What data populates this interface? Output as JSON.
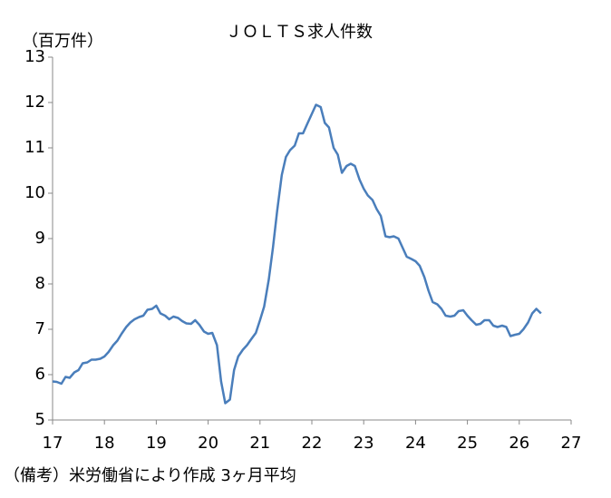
{
  "chart_data": {
    "type": "line",
    "title": "ＪＯＬＴＳ求人件数",
    "y_label": "（百万件）",
    "note": "（備考）米労働省により作成 3ヶ月平均",
    "x": [
      17,
      17.08,
      17.17,
      17.25,
      17.33,
      17.42,
      17.5,
      17.58,
      17.67,
      17.75,
      17.83,
      17.92,
      18,
      18.08,
      18.17,
      18.25,
      18.33,
      18.42,
      18.5,
      18.58,
      18.67,
      18.75,
      18.83,
      18.92,
      19,
      19.08,
      19.17,
      19.25,
      19.33,
      19.42,
      19.5,
      19.58,
      19.67,
      19.75,
      19.83,
      19.92,
      20,
      20.08,
      20.17,
      20.25,
      20.33,
      20.42,
      20.5,
      20.58,
      20.67,
      20.75,
      20.83,
      20.92,
      21,
      21.08,
      21.17,
      21.25,
      21.33,
      21.42,
      21.5,
      21.58,
      21.67,
      21.75,
      21.83,
      21.92,
      22,
      22.08,
      22.17,
      22.25,
      22.33,
      22.42,
      22.5,
      22.58,
      22.67,
      22.75,
      22.83,
      22.92,
      23,
      23.08,
      23.17,
      23.25,
      23.33,
      23.42,
      23.5,
      23.58,
      23.67,
      23.75,
      23.83,
      23.92,
      24,
      24.08,
      24.17,
      24.25,
      24.33,
      24.42,
      24.5,
      24.58,
      24.67,
      24.75,
      24.83,
      24.92,
      25,
      25.08,
      25.17,
      25.25,
      25.33,
      25.42,
      25.5,
      25.58,
      25.67,
      25.75,
      25.83,
      25.92,
      26,
      26.08,
      26.17,
      26.25,
      26.33,
      26.42
    ],
    "series": [
      {
        "name": "JOLTS",
        "color": "#4a7ebb",
        "values": [
          5.85,
          5.84,
          5.8,
          5.95,
          5.93,
          6.05,
          6.1,
          6.25,
          6.27,
          6.33,
          6.33,
          6.35,
          6.4,
          6.5,
          6.65,
          6.75,
          6.9,
          7.05,
          7.15,
          7.22,
          7.27,
          7.3,
          7.43,
          7.45,
          7.52,
          7.35,
          7.3,
          7.22,
          7.28,
          7.25,
          7.18,
          7.13,
          7.12,
          7.2,
          7.1,
          6.95,
          6.9,
          6.92,
          6.65,
          5.85,
          5.37,
          5.45,
          6.1,
          6.4,
          6.55,
          6.65,
          6.78,
          6.92,
          7.2,
          7.5,
          8.1,
          8.8,
          9.6,
          10.4,
          10.8,
          10.95,
          11.05,
          11.32,
          11.32,
          11.55,
          11.75,
          11.95,
          11.9,
          11.55,
          11.45,
          11.0,
          10.85,
          10.45,
          10.6,
          10.65,
          10.6,
          10.3,
          10.1,
          9.95,
          9.85,
          9.65,
          9.5,
          9.05,
          9.03,
          9.05,
          9.0,
          8.8,
          8.6,
          8.55,
          8.5,
          8.4,
          8.15,
          7.85,
          7.6,
          7.55,
          7.45,
          7.3,
          7.28,
          7.3,
          7.4,
          7.42,
          7.3,
          7.2,
          7.1,
          7.12,
          7.2,
          7.2,
          7.08,
          7.05,
          7.08,
          7.05,
          6.85,
          6.88,
          6.9,
          7.0,
          7.15,
          7.35,
          7.45,
          7.35
        ]
      }
    ],
    "xlim": [
      17,
      27
    ],
    "ylim": [
      5,
      13
    ],
    "xticks": [
      17,
      18,
      19,
      20,
      21,
      22,
      23,
      24,
      25,
      26,
      27
    ],
    "yticks": [
      5,
      6,
      7,
      8,
      9,
      10,
      11,
      12,
      13
    ],
    "grid": false
  }
}
